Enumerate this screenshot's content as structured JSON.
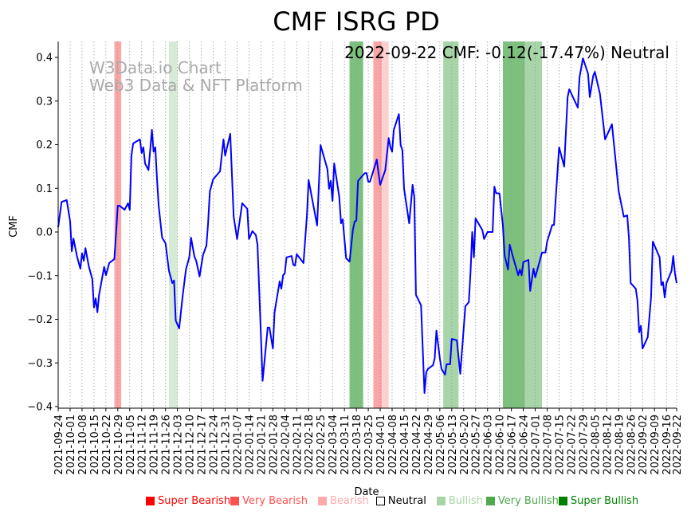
{
  "chart_data": {
    "type": "line",
    "title": "CMF ISRG PD",
    "annotation": "2022-09-22 CMF: -0.12(-17.47%) Neutral",
    "watermark": [
      "W3Data.io Chart",
      "Web3 Data & NFT Platform"
    ],
    "xlabel": "Date",
    "ylabel": "CMF",
    "start_date": "2021-09-24",
    "x_unit": "days since start_date",
    "xlim": [
      0,
      363
    ],
    "ylim": [
      -0.405,
      0.435
    ],
    "yticks": [
      -0.4,
      -0.3,
      -0.2,
      -0.1,
      0.0,
      0.1,
      0.2,
      0.3,
      0.4
    ],
    "ytick_labels": [
      "−0.4",
      "−0.3",
      "−0.2",
      "−0.1",
      "0.0",
      "0.1",
      "0.2",
      "0.3",
      "0.4"
    ],
    "xtick_days": [
      0,
      7,
      14,
      21,
      28,
      35,
      42,
      49,
      56,
      63,
      70,
      77,
      84,
      91,
      98,
      105,
      112,
      119,
      126,
      133,
      140,
      147,
      154,
      161,
      168,
      175,
      182,
      189,
      196,
      203,
      210,
      217,
      224,
      231,
      238,
      245,
      252,
      259,
      266,
      273,
      280,
      287,
      294,
      301,
      308,
      315,
      322,
      329,
      336,
      343,
      350,
      357,
      363
    ],
    "xtick_labels": [
      "2021-09-24",
      "2021-10-01",
      "2021-10-08",
      "2021-10-15",
      "2021-10-22",
      "2021-10-29",
      "2021-11-05",
      "2021-11-12",
      "2021-11-19",
      "2021-11-26",
      "2021-12-03",
      "2021-12-10",
      "2021-12-17",
      "2021-12-24",
      "2021-12-31",
      "2022-01-07",
      "2022-01-14",
      "2022-01-21",
      "2022-01-28",
      "2022-02-04",
      "2022-02-11",
      "2022-02-18",
      "2022-02-25",
      "2022-03-04",
      "2022-03-11",
      "2022-03-18",
      "2022-03-25",
      "2022-04-01",
      "2022-04-08",
      "2022-04-15",
      "2022-04-22",
      "2022-04-29",
      "2022-05-06",
      "2022-05-13",
      "2022-05-20",
      "2022-05-27",
      "2022-06-03",
      "2022-06-10",
      "2022-06-17",
      "2022-06-24",
      "2022-07-01",
      "2022-07-08",
      "2022-07-15",
      "2022-07-22",
      "2022-07-29",
      "2022-08-05",
      "2022-08-12",
      "2022-08-19",
      "2022-08-26",
      "2022-09-02",
      "2022-09-09",
      "2022-09-16",
      "2022-09-22"
    ],
    "grid": "vertical dotted",
    "series": [
      {
        "name": "CMF",
        "color": "#0000ff",
        "points": [
          [
            0,
            0.011
          ],
          [
            2,
            0.069
          ],
          [
            5,
            0.073
          ],
          [
            7,
            0.024
          ],
          [
            8,
            -0.044
          ],
          [
            9,
            -0.015
          ],
          [
            11,
            -0.055
          ],
          [
            13,
            -0.084
          ],
          [
            14,
            -0.049
          ],
          [
            15,
            -0.066
          ],
          [
            16,
            -0.037
          ],
          [
            18,
            -0.079
          ],
          [
            20,
            -0.108
          ],
          [
            21,
            -0.173
          ],
          [
            22,
            -0.152
          ],
          [
            23,
            -0.184
          ],
          [
            24,
            -0.144
          ],
          [
            27,
            -0.08
          ],
          [
            28,
            -0.099
          ],
          [
            30,
            -0.071
          ],
          [
            33,
            -0.062
          ],
          [
            35,
            0.06
          ],
          [
            36,
            0.06
          ],
          [
            39,
            0.051
          ],
          [
            41,
            0.066
          ],
          [
            42,
            0.051
          ],
          [
            43,
            0.175
          ],
          [
            44,
            0.203
          ],
          [
            48,
            0.212
          ],
          [
            49,
            0.181
          ],
          [
            50,
            0.194
          ],
          [
            51,
            0.157
          ],
          [
            53,
            0.142
          ],
          [
            55,
            0.234
          ],
          [
            56,
            0.184
          ],
          [
            57,
            0.194
          ],
          [
            58,
            0.121
          ],
          [
            59,
            0.06
          ],
          [
            61,
            -0.013
          ],
          [
            63,
            -0.026
          ],
          [
            65,
            -0.089
          ],
          [
            67,
            -0.117
          ],
          [
            68,
            -0.111
          ],
          [
            69,
            -0.203
          ],
          [
            71,
            -0.221
          ],
          [
            73,
            -0.148
          ],
          [
            75,
            -0.086
          ],
          [
            77,
            -0.057
          ],
          [
            78,
            -0.013
          ],
          [
            80,
            -0.057
          ],
          [
            81,
            -0.066
          ],
          [
            83,
            -0.102
          ],
          [
            85,
            -0.053
          ],
          [
            87,
            -0.031
          ],
          [
            88,
            0.02
          ],
          [
            89,
            0.093
          ],
          [
            91,
            0.121
          ],
          [
            95,
            0.139
          ],
          [
            96,
            0.175
          ],
          [
            97,
            0.212
          ],
          [
            98,
            0.175
          ],
          [
            101,
            0.225
          ],
          [
            103,
            0.035
          ],
          [
            105,
            -0.016
          ],
          [
            108,
            0.066
          ],
          [
            111,
            0.053
          ],
          [
            112,
            -0.016
          ],
          [
            114,
            0.002
          ],
          [
            116,
            -0.007
          ],
          [
            117,
            -0.029
          ],
          [
            120,
            -0.341
          ],
          [
            123,
            -0.219
          ],
          [
            124,
            -0.219
          ],
          [
            126,
            -0.267
          ],
          [
            127,
            -0.184
          ],
          [
            130,
            -0.113
          ],
          [
            131,
            -0.13
          ],
          [
            132,
            -0.099
          ],
          [
            133,
            -0.095
          ],
          [
            134,
            -0.058
          ],
          [
            137,
            -0.055
          ],
          [
            138,
            -0.075
          ],
          [
            139,
            -0.077
          ],
          [
            140,
            -0.051
          ],
          [
            144,
            -0.071
          ],
          [
            146,
            0.038
          ],
          [
            147,
            0.119
          ],
          [
            152,
            0.015
          ],
          [
            154,
            0.199
          ],
          [
            158,
            0.144
          ],
          [
            159,
            0.099
          ],
          [
            160,
            0.117
          ],
          [
            161,
            0.071
          ],
          [
            162,
            0.157
          ],
          [
            165,
            0.08
          ],
          [
            166,
            0.02
          ],
          [
            167,
            0.029
          ],
          [
            169,
            -0.06
          ],
          [
            171,
            -0.068
          ],
          [
            173,
            0.005
          ],
          [
            174,
            0.024
          ],
          [
            175,
            0.026
          ],
          [
            176,
            0.117
          ],
          [
            180,
            0.135
          ],
          [
            181,
            0.135
          ],
          [
            182,
            0.115
          ],
          [
            183,
            0.115
          ],
          [
            187,
            0.166
          ],
          [
            188,
            0.135
          ],
          [
            189,
            0.108
          ],
          [
            192,
            0.142
          ],
          [
            194,
            0.215
          ],
          [
            195,
            0.194
          ],
          [
            196,
            0.184
          ],
          [
            197,
            0.234
          ],
          [
            200,
            0.27
          ],
          [
            201,
            0.199
          ],
          [
            202,
            0.188
          ],
          [
            203,
            0.099
          ],
          [
            206,
            0.02
          ],
          [
            208,
            0.108
          ],
          [
            209,
            0.08
          ],
          [
            210,
            -0.144
          ],
          [
            213,
            -0.168
          ],
          [
            215,
            -0.369
          ],
          [
            216,
            -0.321
          ],
          [
            217,
            -0.314
          ],
          [
            220,
            -0.305
          ],
          [
            221,
            -0.29
          ],
          [
            222,
            -0.226
          ],
          [
            224,
            -0.29
          ],
          [
            225,
            -0.314
          ],
          [
            227,
            -0.327
          ],
          [
            228,
            -0.303
          ],
          [
            230,
            -0.303
          ],
          [
            231,
            -0.245
          ],
          [
            234,
            -0.248
          ],
          [
            236,
            -0.325
          ],
          [
            239,
            -0.17
          ],
          [
            241,
            -0.161
          ],
          [
            242,
            -0.095
          ],
          [
            243,
            0.0
          ],
          [
            244,
            -0.058
          ],
          [
            245,
            0.031
          ],
          [
            249,
            0.004
          ],
          [
            250,
            -0.016
          ],
          [
            252,
            0.0
          ],
          [
            255,
            0.0
          ],
          [
            256,
            0.104
          ],
          [
            257,
            0.089
          ],
          [
            259,
            0.088
          ],
          [
            261,
            0.015
          ],
          [
            262,
            -0.053
          ],
          [
            264,
            -0.086
          ],
          [
            265,
            -0.029
          ],
          [
            267,
            -0.058
          ],
          [
            270,
            -0.099
          ],
          [
            271,
            -0.086
          ],
          [
            272,
            -0.099
          ],
          [
            273,
            -0.069
          ],
          [
            276,
            -0.064
          ],
          [
            277,
            -0.135
          ],
          [
            279,
            -0.084
          ],
          [
            280,
            -0.104
          ],
          [
            284,
            -0.047
          ],
          [
            286,
            -0.047
          ],
          [
            287,
            -0.022
          ],
          [
            290,
            0.016
          ],
          [
            291,
            0.016
          ],
          [
            294,
            0.194
          ],
          [
            297,
            0.15
          ],
          [
            299,
            0.309
          ],
          [
            300,
            0.327
          ],
          [
            305,
            0.285
          ],
          [
            306,
            0.354
          ],
          [
            308,
            0.398
          ],
          [
            311,
            0.363
          ],
          [
            312,
            0.309
          ],
          [
            314,
            0.358
          ],
          [
            315,
            0.367
          ],
          [
            318,
            0.316
          ],
          [
            321,
            0.212
          ],
          [
            325,
            0.247
          ],
          [
            329,
            0.093
          ],
          [
            332,
            0.035
          ],
          [
            334,
            0.038
          ],
          [
            335,
            -0.013
          ],
          [
            336,
            -0.117
          ],
          [
            339,
            -0.13
          ],
          [
            340,
            -0.157
          ],
          [
            341,
            -0.23
          ],
          [
            342,
            -0.215
          ],
          [
            343,
            -0.267
          ],
          [
            346,
            -0.241
          ],
          [
            348,
            -0.15
          ],
          [
            349,
            -0.022
          ],
          [
            353,
            -0.058
          ],
          [
            354,
            -0.122
          ],
          [
            355,
            -0.115
          ],
          [
            356,
            -0.15
          ],
          [
            357,
            -0.117
          ],
          [
            360,
            -0.089
          ],
          [
            361,
            -0.055
          ],
          [
            362,
            -0.095
          ],
          [
            363,
            -0.117
          ]
        ]
      }
    ],
    "signal_bands": [
      {
        "start": 33,
        "end": 37,
        "signal": "Very Bearish"
      },
      {
        "start": 65,
        "end": 70,
        "signal": "Bullish"
      },
      {
        "start": 171,
        "end": 179,
        "signal": "Very Bullish"
      },
      {
        "start": 185,
        "end": 190,
        "signal": "Very Bearish"
      },
      {
        "start": 190,
        "end": 194,
        "signal": "Bearish"
      },
      {
        "start": 226,
        "end": 235,
        "signal": "Bullish"
      },
      {
        "start": 261,
        "end": 274,
        "signal": "Very Bullish"
      },
      {
        "start": 274,
        "end": 284,
        "signal": "Bullish"
      }
    ],
    "legend_placement": "bottom",
    "legend": [
      {
        "label": "Super Bearish",
        "color": "#ff0000",
        "text_color": "#ff0000"
      },
      {
        "label": "Very Bearish",
        "color": "#ff5050",
        "text_color": "#ff5050"
      },
      {
        "label": "Bearish",
        "color": "#ffaaaa",
        "text_color": "#ffaaaa"
      },
      {
        "label": "Neutral",
        "color": "none",
        "text_color": "#000000"
      },
      {
        "label": "Bullish",
        "color": "#a8d5a8",
        "text_color": "#a8d5a8"
      },
      {
        "label": "Very Bullish",
        "color": "#50a850",
        "text_color": "#50a850"
      },
      {
        "label": "Super Bullish",
        "color": "#008000",
        "text_color": "#008000"
      }
    ],
    "band_colors": {
      "Very Bearish": "#fba5a5",
      "Bearish": "#fdd0d0",
      "Bullish": "#a8d5a8",
      "Very Bullish": "#7dbf7d",
      "Light Bullish": "#d6ebd6"
    }
  }
}
